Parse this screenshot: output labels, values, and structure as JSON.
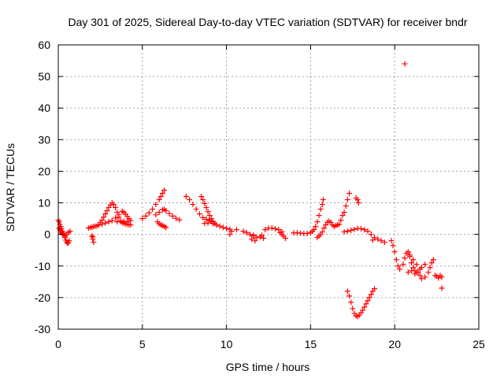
{
  "chart_data": {
    "type": "scatter",
    "title": "Day 301 of 2025, Sidereal Day-to-day VTEC variation (SDTVAR) for receiver bndr",
    "xlabel": "GPS time / hours",
    "ylabel": "SDTVAR / TECUs",
    "xlim": [
      0,
      25
    ],
    "ylim": [
      -30,
      60
    ],
    "xticks": [
      0,
      5,
      10,
      15,
      20,
      25
    ],
    "yticks": [
      -30,
      -20,
      -10,
      0,
      10,
      20,
      30,
      40,
      50,
      60
    ],
    "xtick_labels": [
      "0",
      "5",
      "10",
      "15",
      "20",
      "25"
    ],
    "ytick_labels": [
      "-30",
      "-20",
      "-10",
      "0",
      "10",
      "20",
      "30",
      "40",
      "50",
      "60"
    ],
    "grid": true,
    "marker": "+",
    "color": "#ff0000",
    "series": [
      {
        "name": "SDTVAR",
        "points": [
          [
            0.0,
            4.5
          ],
          [
            0.05,
            4.0
          ],
          [
            0.1,
            3.2
          ],
          [
            0.15,
            2.5
          ],
          [
            0.2,
            1.8
          ],
          [
            0.25,
            1.0
          ],
          [
            0.3,
            0.4
          ],
          [
            0.35,
            -0.3
          ],
          [
            0.4,
            -1.0
          ],
          [
            0.45,
            -1.8
          ],
          [
            0.5,
            -2.4
          ],
          [
            0.55,
            -2.8
          ],
          [
            0.6,
            -2.6
          ],
          [
            0.65,
            -2.0
          ],
          [
            0.05,
            2.0
          ],
          [
            0.1,
            1.5
          ],
          [
            0.15,
            1.0
          ],
          [
            0.2,
            0.5
          ],
          [
            0.25,
            0.2
          ],
          [
            0.3,
            0.0
          ],
          [
            0.4,
            -0.5
          ],
          [
            0.5,
            0.0
          ],
          [
            0.6,
            0.6
          ],
          [
            0.7,
            1.0
          ],
          [
            1.8,
            2.0
          ],
          [
            1.9,
            2.2
          ],
          [
            2.0,
            2.3
          ],
          [
            2.1,
            2.5
          ],
          [
            2.2,
            2.6
          ],
          [
            2.3,
            2.7
          ],
          [
            2.0,
            -0.5
          ],
          [
            2.05,
            -1.5
          ],
          [
            2.1,
            -2.5
          ],
          [
            2.05,
            -0.8
          ],
          [
            2.4,
            3.0
          ],
          [
            2.5,
            3.8
          ],
          [
            2.6,
            4.5
          ],
          [
            2.7,
            5.5
          ],
          [
            2.8,
            6.5
          ],
          [
            2.9,
            7.5
          ],
          [
            3.0,
            8.5
          ],
          [
            3.1,
            9.3
          ],
          [
            3.2,
            10.0
          ],
          [
            3.3,
            9.5
          ],
          [
            3.4,
            8.5
          ],
          [
            3.5,
            7.0
          ],
          [
            3.6,
            5.5
          ],
          [
            3.7,
            4.3
          ],
          [
            3.8,
            3.8
          ],
          [
            3.9,
            3.5
          ],
          [
            4.0,
            3.3
          ],
          [
            4.1,
            3.2
          ],
          [
            4.2,
            3.1
          ],
          [
            4.3,
            3.0
          ],
          [
            2.6,
            3.2
          ],
          [
            2.8,
            3.6
          ],
          [
            3.0,
            4.0
          ],
          [
            3.2,
            4.4
          ],
          [
            3.4,
            5.2
          ],
          [
            3.6,
            6.2
          ],
          [
            3.8,
            7.3
          ],
          [
            3.9,
            7.0
          ],
          [
            4.0,
            6.4
          ],
          [
            4.1,
            5.7
          ],
          [
            4.2,
            5.0
          ],
          [
            4.3,
            4.4
          ],
          [
            3.5,
            4.0
          ],
          [
            3.7,
            4.1
          ],
          [
            3.9,
            4.2
          ],
          [
            4.1,
            3.9
          ],
          [
            5.0,
            5.0
          ],
          [
            5.2,
            5.8
          ],
          [
            5.4,
            6.8
          ],
          [
            5.6,
            8.0
          ],
          [
            5.8,
            9.5
          ],
          [
            6.0,
            11.0
          ],
          [
            6.1,
            12.0
          ],
          [
            6.2,
            13.0
          ],
          [
            6.3,
            14.0
          ],
          [
            5.8,
            6.2
          ],
          [
            6.0,
            7.0
          ],
          [
            6.2,
            7.8
          ],
          [
            6.3,
            8.0
          ],
          [
            6.4,
            7.5
          ],
          [
            6.6,
            6.6
          ],
          [
            6.8,
            5.8
          ],
          [
            7.0,
            5.1
          ],
          [
            7.2,
            4.6
          ],
          [
            5.9,
            4.0
          ],
          [
            6.0,
            3.4
          ],
          [
            6.1,
            3.0
          ],
          [
            6.2,
            2.8
          ],
          [
            6.3,
            2.5
          ],
          [
            6.4,
            2.2
          ],
          [
            7.6,
            12.0
          ],
          [
            7.8,
            11.0
          ],
          [
            8.0,
            9.5
          ],
          [
            8.2,
            8.0
          ],
          [
            8.4,
            6.5
          ],
          [
            8.6,
            5.3
          ],
          [
            8.8,
            4.8
          ],
          [
            9.0,
            4.5
          ],
          [
            9.1,
            4.2
          ],
          [
            8.5,
            12.0
          ],
          [
            8.6,
            11.0
          ],
          [
            8.7,
            9.8
          ],
          [
            8.8,
            8.5
          ],
          [
            8.9,
            7.2
          ],
          [
            9.0,
            6.0
          ],
          [
            9.1,
            5.0
          ],
          [
            9.2,
            4.0
          ],
          [
            9.3,
            3.5
          ],
          [
            8.7,
            3.5
          ],
          [
            8.9,
            3.6
          ],
          [
            9.2,
            3.4
          ],
          [
            9.4,
            3.0
          ],
          [
            9.6,
            2.6
          ],
          [
            9.8,
            2.2
          ],
          [
            10.0,
            1.9
          ],
          [
            10.2,
            1.6
          ],
          [
            10.2,
            0.0
          ],
          [
            10.3,
            1.0
          ],
          [
            10.6,
            1.5
          ],
          [
            11.0,
            1.0
          ],
          [
            11.2,
            0.5
          ],
          [
            11.4,
            0.0
          ],
          [
            11.6,
            -0.5
          ],
          [
            11.8,
            -1.0
          ],
          [
            12.0,
            -0.8
          ],
          [
            12.2,
            -1.2
          ],
          [
            11.5,
            -1.5
          ],
          [
            11.7,
            -2.0
          ],
          [
            11.6,
            -0.2
          ],
          [
            12.1,
            -0.3
          ],
          [
            12.3,
            1.5
          ],
          [
            12.5,
            2.0
          ],
          [
            12.7,
            2.0
          ],
          [
            12.9,
            1.8
          ],
          [
            13.1,
            1.5
          ],
          [
            13.2,
            0.5
          ],
          [
            13.3,
            0.0
          ],
          [
            13.4,
            -0.5
          ],
          [
            13.5,
            -1.2
          ],
          [
            13.3,
            0.8
          ],
          [
            14.0,
            0.5
          ],
          [
            14.2,
            0.5
          ],
          [
            14.4,
            0.4
          ],
          [
            14.6,
            0.3
          ],
          [
            14.8,
            0.3
          ],
          [
            15.0,
            0.5
          ],
          [
            15.1,
            1.0
          ],
          [
            15.2,
            1.5
          ],
          [
            15.3,
            2.5
          ],
          [
            15.4,
            4.0
          ],
          [
            15.5,
            6.0
          ],
          [
            15.6,
            8.0
          ],
          [
            15.7,
            9.5
          ],
          [
            15.75,
            11.0
          ],
          [
            15.4,
            -1.0
          ],
          [
            15.5,
            -0.5
          ],
          [
            15.6,
            0.0
          ],
          [
            15.7,
            0.8
          ],
          [
            15.8,
            2.0
          ],
          [
            15.9,
            3.0
          ],
          [
            16.0,
            3.8
          ],
          [
            16.1,
            4.2
          ],
          [
            16.2,
            3.8
          ],
          [
            16.3,
            3.0
          ],
          [
            16.4,
            2.5
          ],
          [
            16.5,
            2.8
          ],
          [
            16.6,
            3.0
          ],
          [
            16.7,
            3.2
          ],
          [
            16.8,
            4.5
          ],
          [
            16.9,
            6.0
          ],
          [
            17.0,
            7.0
          ],
          [
            17.1,
            9.0
          ],
          [
            17.2,
            11.0
          ],
          [
            17.3,
            13.0
          ],
          [
            17.0,
            0.8
          ],
          [
            17.2,
            1.0
          ],
          [
            17.4,
            1.3
          ],
          [
            17.6,
            1.6
          ],
          [
            17.8,
            1.9
          ],
          [
            18.0,
            1.8
          ],
          [
            18.2,
            1.5
          ],
          [
            18.4,
            1.0
          ],
          [
            18.6,
            0.0
          ],
          [
            18.8,
            -1.0
          ],
          [
            19.0,
            -1.5
          ],
          [
            19.2,
            -2.0
          ],
          [
            19.4,
            -2.5
          ],
          [
            18.7,
            -1.8
          ],
          [
            17.7,
            11.5
          ],
          [
            17.8,
            11.0
          ],
          [
            17.85,
            10.0
          ],
          [
            17.2,
            -18.0
          ],
          [
            17.3,
            -19.5
          ],
          [
            17.4,
            -21.5
          ],
          [
            17.5,
            -23.5
          ],
          [
            17.6,
            -25.0
          ],
          [
            17.7,
            -25.8
          ],
          [
            17.8,
            -26.0
          ],
          [
            17.9,
            -25.5
          ],
          [
            18.0,
            -24.8
          ],
          [
            18.1,
            -24.0
          ],
          [
            18.2,
            -23.0
          ],
          [
            18.3,
            -22.0
          ],
          [
            18.4,
            -21.0
          ],
          [
            18.5,
            -20.0
          ],
          [
            18.6,
            -19.0
          ],
          [
            18.7,
            -18.0
          ],
          [
            18.8,
            -17.2
          ],
          [
            19.8,
            -2.0
          ],
          [
            19.9,
            -3.5
          ],
          [
            20.0,
            -5.5
          ],
          [
            20.1,
            -8.0
          ],
          [
            20.2,
            -10.0
          ],
          [
            20.3,
            -11.0
          ],
          [
            20.5,
            -9.5
          ],
          [
            20.6,
            -7.5
          ],
          [
            20.7,
            -6.0
          ],
          [
            20.8,
            -5.5
          ],
          [
            20.9,
            -7.0
          ],
          [
            21.0,
            -9.0
          ],
          [
            21.1,
            -10.5
          ],
          [
            21.2,
            -11.5
          ],
          [
            21.3,
            -12.0
          ],
          [
            21.5,
            -13.0
          ],
          [
            21.6,
            -14.0
          ],
          [
            21.8,
            -13.5
          ],
          [
            22.0,
            -12.0
          ],
          [
            22.1,
            -10.5
          ],
          [
            22.2,
            -9.0
          ],
          [
            22.3,
            -8.0
          ],
          [
            20.8,
            -12.0
          ],
          [
            21.0,
            -11.5
          ],
          [
            21.2,
            -12.5
          ],
          [
            21.4,
            -12.0
          ],
          [
            21.6,
            -10.5
          ],
          [
            21.8,
            -9.5
          ],
          [
            21.3,
            -9.5
          ],
          [
            21.5,
            -11.0
          ],
          [
            21.1,
            -8.0
          ],
          [
            20.9,
            -6.5
          ],
          [
            22.4,
            -13.0
          ],
          [
            22.5,
            -13.2
          ],
          [
            22.6,
            -13.8
          ],
          [
            22.7,
            -13.0
          ],
          [
            22.8,
            -13.5
          ],
          [
            22.8,
            -17.0
          ],
          [
            20.6,
            54.0
          ]
        ]
      }
    ]
  }
}
